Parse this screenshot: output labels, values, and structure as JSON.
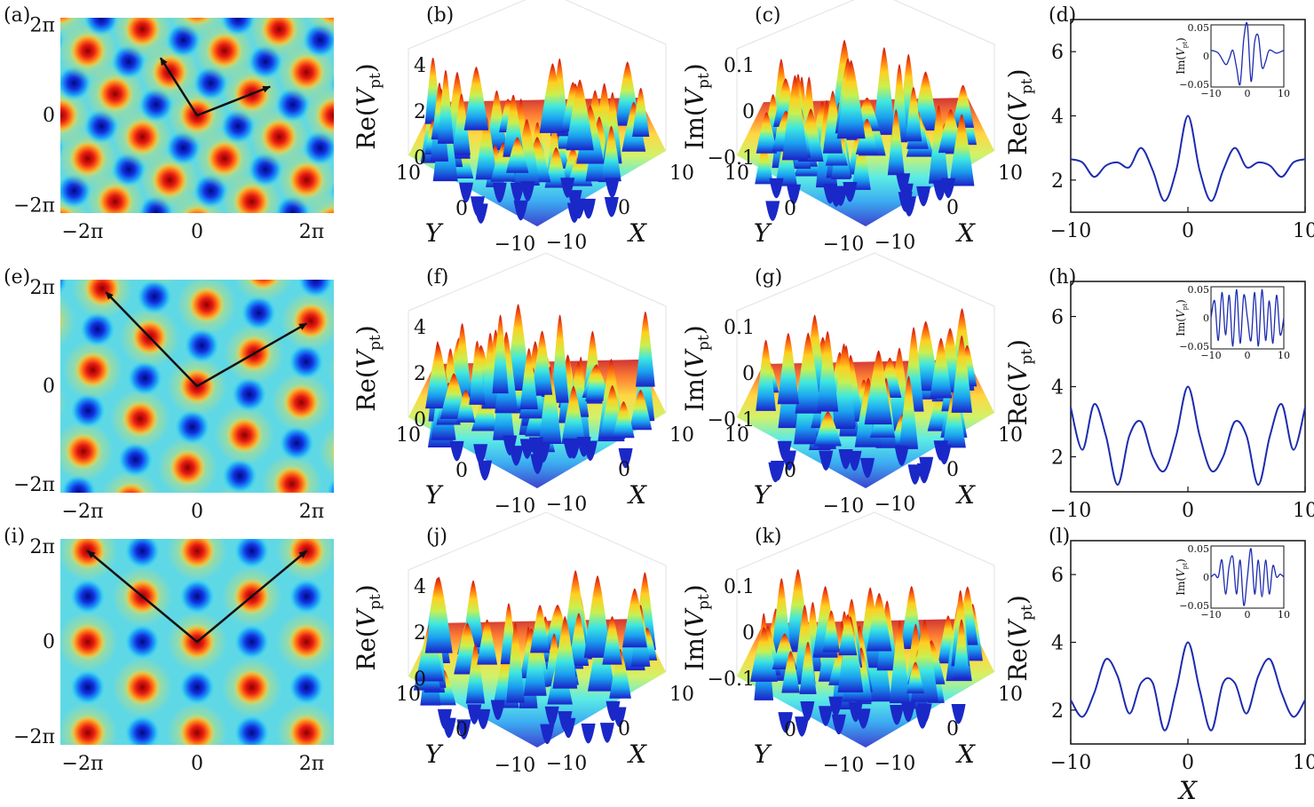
{
  "chart_data": [
    {
      "panel": "(a)",
      "type": "heatmap",
      "xticks": [
        "−2π",
        "0",
        "2π"
      ],
      "yticks": [
        "2π",
        "0",
        "−2π"
      ],
      "xlim": [
        -7.5,
        7.5
      ],
      "ylim": [
        -6.8,
        6.8
      ],
      "lattice_vectors": [
        [
          -2,
          4
        ],
        [
          4,
          2
        ]
      ],
      "colormap": "jet"
    },
    {
      "panel": "(b)",
      "type": "surface",
      "zlabel": "Re(V_pt)",
      "xlabel": "X",
      "ylabel": "Y",
      "zticks": [
        "0",
        "2",
        "4"
      ],
      "xticks": [
        "−10",
        "0",
        "10"
      ],
      "yticks": [
        "10",
        "0",
        "−10"
      ],
      "zlim": [
        0,
        4.5
      ]
    },
    {
      "panel": "(c)",
      "type": "surface",
      "zlabel": "Im(V_pt)",
      "xlabel": "X",
      "ylabel": "Y",
      "zticks": [
        "−0.1",
        "0",
        "0.1"
      ],
      "xticks": [
        "−10",
        "0",
        "10"
      ],
      "yticks": [
        "10",
        "0",
        "−10"
      ],
      "zlim": [
        -0.1,
        0.12
      ]
    },
    {
      "panel": "(d)",
      "type": "line",
      "xlabel": "",
      "ylabel": "Re(V_pt)",
      "xlim": [
        -10,
        10
      ],
      "ylim": [
        1,
        7
      ],
      "xticks": [
        "−10",
        "0",
        "10"
      ],
      "yticks": [
        "2",
        "4",
        "6"
      ],
      "x": [
        -10,
        -9,
        -8,
        -7,
        -6,
        -5,
        -4,
        -3,
        -2,
        -1,
        0,
        1,
        2,
        3,
        4,
        5,
        6,
        7,
        8,
        9,
        10
      ],
      "values": [
        2.65,
        2.55,
        2.1,
        2.45,
        2.55,
        2.4,
        3.0,
        2.3,
        1.35,
        2.3,
        4.0,
        2.3,
        1.35,
        2.3,
        3.0,
        2.4,
        2.55,
        2.45,
        2.1,
        2.55,
        2.65
      ],
      "inset": {
        "ylabel": "Im(V_pt)",
        "xticks": [
          "−10",
          "0",
          "10"
        ],
        "yticks": [
          "0.05",
          "0",
          "−0.05"
        ],
        "xlim": [
          -10,
          10
        ],
        "ylim": [
          -0.055,
          0.055
        ],
        "x": [
          -10,
          -8,
          -6,
          -5,
          -4,
          -3,
          -2,
          -1,
          0,
          1,
          2,
          3,
          4,
          5,
          6,
          8,
          10
        ],
        "values": [
          0.01,
          0.005,
          -0.015,
          -0.005,
          0.01,
          -0.02,
          -0.05,
          0.03,
          0.055,
          -0.045,
          0.025,
          0.035,
          -0.02,
          -0.01,
          0.01,
          0.005,
          0.01
        ]
      }
    },
    {
      "panel": "(e)",
      "type": "heatmap",
      "xticks": [
        "−2π",
        "0",
        "2π"
      ],
      "yticks": [
        "2π",
        "0",
        "−2π"
      ],
      "xlim": [
        -7.5,
        7.5
      ],
      "ylim": [
        -6.8,
        6.8
      ],
      "lattice_vectors": [
        [
          -5,
          6
        ],
        [
          6,
          4
        ]
      ],
      "colormap": "jet"
    },
    {
      "panel": "(f)",
      "type": "surface",
      "zlabel": "Re(V_pt)",
      "xlabel": "X",
      "ylabel": "Y",
      "zticks": [
        "0",
        "2",
        "4"
      ],
      "xticks": [
        "−10",
        "0",
        "10"
      ],
      "yticks": [
        "10",
        "0",
        "−10"
      ],
      "zlim": [
        0,
        4.5
      ]
    },
    {
      "panel": "(g)",
      "type": "surface",
      "zlabel": "Im(V_pt)",
      "xlabel": "X",
      "ylabel": "Y",
      "zticks": [
        "−0.1",
        "0",
        "0.1"
      ],
      "xticks": [
        "−10",
        "0",
        "10"
      ],
      "yticks": [
        "10",
        "0",
        "−10"
      ],
      "zlim": [
        -0.1,
        0.12
      ]
    },
    {
      "panel": "(h)",
      "type": "line",
      "xlabel": "",
      "ylabel": "Re(V_pt)",
      "xlim": [
        -10,
        10
      ],
      "ylim": [
        1,
        7
      ],
      "xticks": [
        "−10",
        "0",
        "10"
      ],
      "yticks": [
        "2",
        "4",
        "6"
      ],
      "x": [
        -10,
        -9,
        -8,
        -7,
        -6,
        -5,
        -4,
        -3,
        -2,
        -1,
        0,
        1,
        2,
        3,
        4,
        5,
        6,
        7,
        8,
        9,
        10
      ],
      "values": [
        3.4,
        2.2,
        3.5,
        2.6,
        1.2,
        2.6,
        3.0,
        2.0,
        1.6,
        2.6,
        4.0,
        2.6,
        1.6,
        2.0,
        3.0,
        2.6,
        1.2,
        2.6,
        3.5,
        2.2,
        3.4
      ],
      "inset": {
        "ylabel": "Im(V_pt)",
        "xticks": [
          "−10",
          "0",
          "10"
        ],
        "yticks": [
          "0.05",
          "0",
          "−0.05"
        ],
        "xlim": [
          -10,
          10
        ],
        "ylim": [
          -0.055,
          0.055
        ],
        "x": [
          -10,
          -9,
          -8,
          -7,
          -6,
          -5,
          -4,
          -3,
          -2,
          -1,
          0,
          1,
          2,
          3,
          4,
          5,
          6,
          7,
          8,
          9,
          10
        ],
        "values": [
          0.0,
          0.03,
          -0.04,
          0.045,
          -0.03,
          0.04,
          -0.05,
          0.05,
          -0.045,
          0.04,
          0.0,
          -0.04,
          0.045,
          -0.05,
          0.05,
          -0.04,
          0.03,
          -0.045,
          0.04,
          -0.03,
          0.0
        ]
      }
    },
    {
      "panel": "(i)",
      "type": "heatmap",
      "xticks": [
        "−2π",
        "0",
        "2π"
      ],
      "yticks": [
        "2π",
        "0",
        "−2π"
      ],
      "xlim": [
        -7.5,
        7.5
      ],
      "ylim": [
        -6.8,
        6.8
      ],
      "lattice_vectors": [
        [
          -6,
          6
        ],
        [
          6,
          6
        ]
      ],
      "colormap": "jet"
    },
    {
      "panel": "(j)",
      "type": "surface",
      "zlabel": "Re(V_pt)",
      "xlabel": "X",
      "ylabel": "Y",
      "zticks": [
        "0",
        "2",
        "4"
      ],
      "xticks": [
        "−10",
        "0",
        "10"
      ],
      "yticks": [
        "10",
        "0",
        "−10"
      ],
      "zlim": [
        0,
        4.5
      ]
    },
    {
      "panel": "(k)",
      "type": "surface",
      "zlabel": "Im(V_pt)",
      "xlabel": "X",
      "ylabel": "Y",
      "zticks": [
        "−0.1",
        "0",
        "0.1"
      ],
      "xticks": [
        "−10",
        "0",
        "10"
      ],
      "yticks": [
        "0",
        "−10"
      ],
      "zlim": [
        -0.1,
        0.12
      ]
    },
    {
      "panel": "(l)",
      "type": "line",
      "xlabel": "X",
      "ylabel": "Re(V_pt)",
      "xlim": [
        -10,
        10
      ],
      "ylim": [
        1,
        7
      ],
      "xticks": [
        "−10",
        "0",
        "10"
      ],
      "yticks": [
        "2",
        "4",
        "6"
      ],
      "x": [
        -10,
        -9,
        -8,
        -7,
        -6,
        -5,
        -4,
        -3,
        -2,
        -1,
        0,
        1,
        2,
        3,
        4,
        5,
        6,
        7,
        8,
        9,
        10
      ],
      "values": [
        2.3,
        1.8,
        2.5,
        3.5,
        3.0,
        1.9,
        2.8,
        2.8,
        1.4,
        2.6,
        4.0,
        2.6,
        1.4,
        2.8,
        2.8,
        1.9,
        3.0,
        3.5,
        2.5,
        1.8,
        2.3
      ],
      "inset": {
        "ylabel": "Im(V_pt)",
        "xticks": [
          "−10",
          "0",
          "10"
        ],
        "yticks": [
          "0.05",
          "0",
          "−0.05"
        ],
        "xlim": [
          -10,
          10
        ],
        "ylim": [
          -0.055,
          0.055
        ],
        "x": [
          -10,
          -9,
          -8,
          -7,
          -6,
          -5,
          -4,
          -3,
          -2,
          -1,
          0,
          1,
          2,
          3,
          4,
          5,
          6,
          7,
          8,
          9,
          10
        ],
        "values": [
          0.0,
          0.005,
          0.0,
          0.03,
          -0.03,
          0.02,
          0.035,
          -0.03,
          0.03,
          -0.05,
          0.0,
          0.05,
          -0.03,
          0.03,
          -0.035,
          0.03,
          -0.03,
          0.02,
          0.0,
          0.005,
          0.0
        ]
      }
    }
  ]
}
